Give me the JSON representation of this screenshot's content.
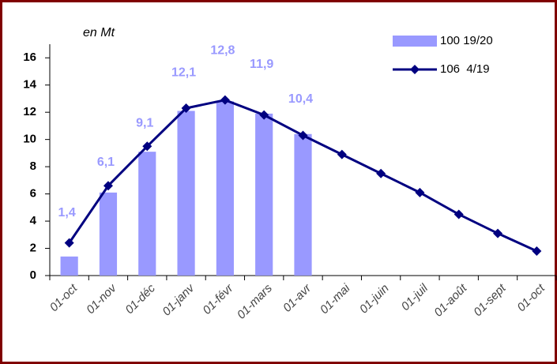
{
  "chart_data": {
    "type": "bar-line",
    "annotation": "en Mt",
    "categories": [
      "01-oct",
      "01-nov",
      "01-déc",
      "01-janv",
      "01-févr",
      "01-mars",
      "01-avr",
      "01-mai",
      "01-juin",
      "01-juil",
      "01-août",
      "01-sept",
      "01-oct"
    ],
    "series": [
      {
        "name": "100 19/20",
        "type": "bar",
        "color": "#9999ff",
        "values": [
          1.4,
          6.1,
          9.1,
          12.1,
          12.8,
          11.9,
          10.4,
          null,
          null,
          null,
          null,
          null,
          null
        ],
        "value_labels": [
          "1,4",
          "6,1",
          "9,1",
          "12,1",
          "12,8",
          "11,9",
          "10,4",
          null,
          null,
          null,
          null,
          null,
          null
        ]
      },
      {
        "name": "106  4/19",
        "type": "line",
        "color": "#000080",
        "values": [
          2.4,
          6.6,
          9.5,
          12.3,
          12.9,
          11.8,
          10.3,
          8.9,
          7.5,
          6.1,
          4.5,
          3.1,
          1.8
        ]
      }
    ],
    "ylim": [
      0,
      17
    ],
    "yticks": [
      0,
      2,
      4,
      6,
      8,
      10,
      12,
      14,
      16
    ],
    "grid": false,
    "legend": "top-right"
  }
}
